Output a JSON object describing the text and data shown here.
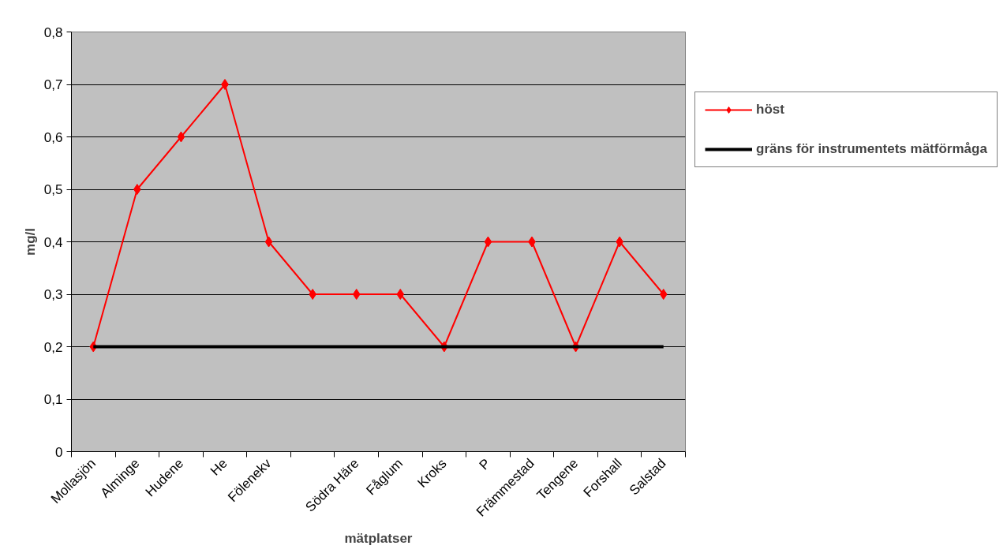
{
  "chart_data": {
    "type": "line",
    "xlabel": "mätplatser",
    "ylabel": "mg/l",
    "categories": [
      "Mollasjön",
      "Alminge",
      "Hudene",
      "He",
      "Fölenekv",
      null,
      "Södra Häre",
      "Fåglum",
      "Kroks",
      "P",
      "Främmestad",
      "Tengene",
      "Forshall",
      "Salstad"
    ],
    "series": [
      {
        "name": "höst",
        "color": "#ff0000",
        "marker": "diamond",
        "values": [
          0.2,
          0.5,
          0.6,
          0.7,
          0.4,
          0.3,
          0.3,
          0.3,
          0.2,
          0.4,
          0.4,
          0.2,
          0.4,
          0.3
        ]
      },
      {
        "name": "gräns för instrumentets mätförmåga",
        "color": "#000000",
        "marker": "none",
        "values": [
          0.2,
          0.2,
          0.2,
          0.2,
          0.2,
          0.2,
          0.2,
          0.2,
          0.2,
          0.2,
          0.2,
          0.2,
          0.2,
          0.2
        ]
      }
    ],
    "ylim": [
      0,
      0.8
    ],
    "yticks": [
      0,
      {
        "value": 0.1,
        "label": "0,1"
      },
      {
        "value": 0.2,
        "label": "0,2"
      },
      {
        "value": 0.3,
        "label": "0,3"
      },
      {
        "value": 0.4,
        "label": "0,4"
      },
      {
        "value": 0.5,
        "label": "0,5"
      },
      {
        "value": 0.6,
        "label": "0,6"
      },
      {
        "value": 0.7,
        "label": "0,7"
      },
      {
        "value": 0.8,
        "label": "0,8"
      }
    ],
    "grid": "y",
    "legend": "right",
    "line_style": "solid"
  }
}
